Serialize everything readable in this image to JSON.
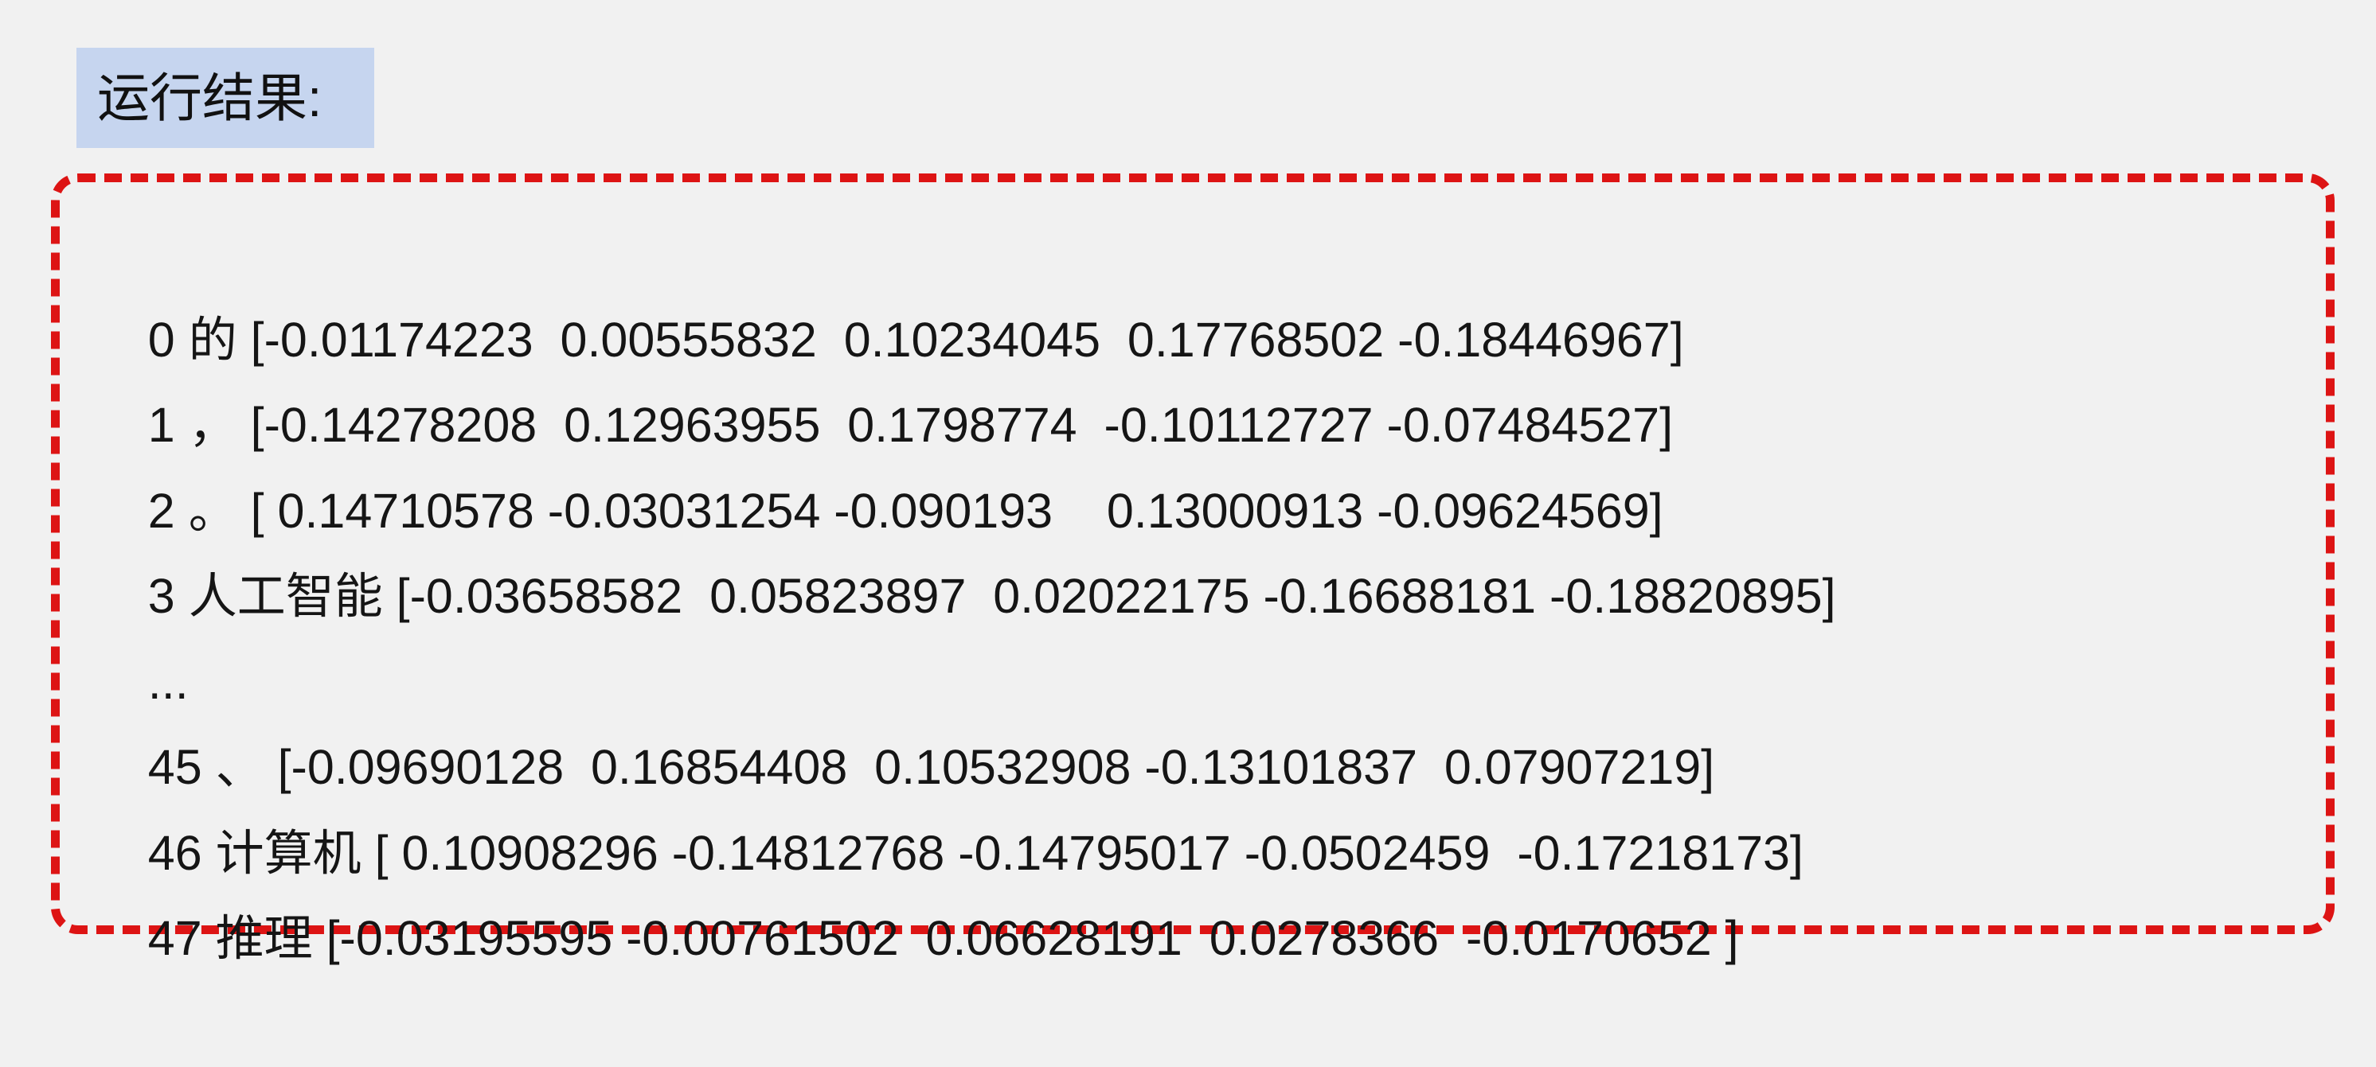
{
  "label": "运行结果:",
  "lines": [
    {
      "index": "0",
      "token": "的",
      "vector": "[-0.01174223  0.00555832  0.10234045  0.17768502 -0.18446967]"
    },
    {
      "index": "1",
      "token": "，",
      "vector": "[-0.14278208  0.12963955  0.1798774  -0.10112727 -0.07484527]"
    },
    {
      "index": "2",
      "token": "。",
      "vector": "[ 0.14710578 -0.03031254 -0.090193    0.13000913 -0.09624569]"
    },
    {
      "index": "3",
      "token": "人工智能",
      "vector": "[-0.03658582  0.05823897  0.02022175 -0.16688181 -0.18820895]"
    },
    {
      "ellipsis": "..."
    },
    {
      "index": "45",
      "token": "、",
      "vector": "[-0.09690128  0.16854408  0.10532908 -0.13101837  0.07907219]"
    },
    {
      "index": "46",
      "token": "计算机",
      "vector": "[ 0.10908296 -0.14812768 -0.14795017 -0.0502459  -0.17218173]"
    },
    {
      "index": "47",
      "token": "推理",
      "vector": "[-0.03195595 -0.00761502  0.06628191  0.0278366  -0.0170652 ]"
    }
  ]
}
